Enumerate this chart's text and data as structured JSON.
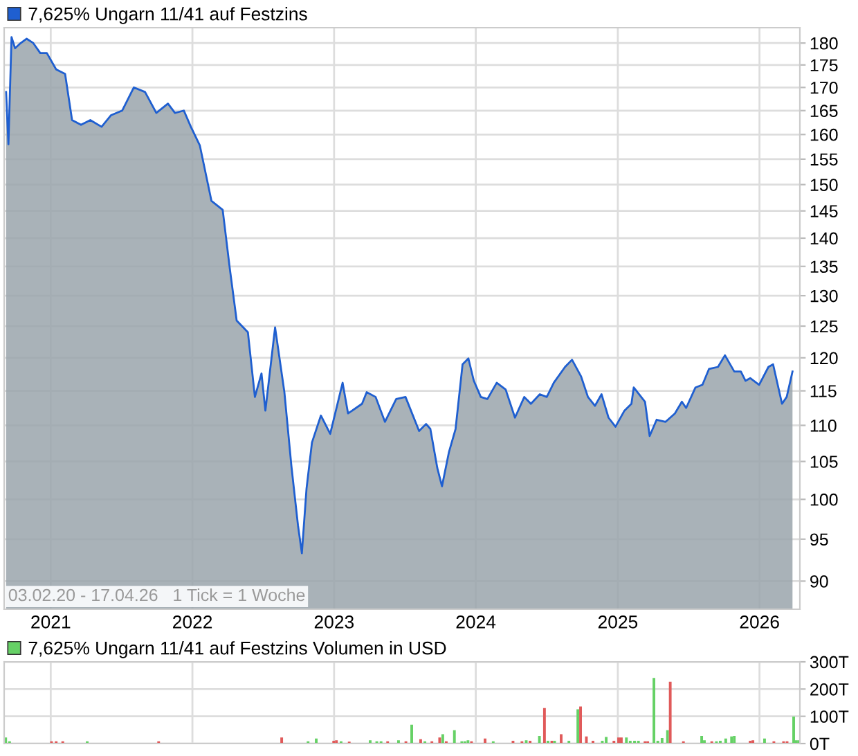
{
  "chart_data": [
    {
      "type": "area",
      "log": "y",
      "grid": true,
      "legend": "top left",
      "xlim": [
        "2020-09-03",
        "2026-04-15"
      ],
      "xticks": [
        {
          "value": "2021-01-01",
          "label": "2021"
        },
        {
          "value": "2022-01-01",
          "label": "2022"
        },
        {
          "value": "2023-01-01",
          "label": "2023"
        },
        {
          "value": "2024-01-01",
          "label": "2024"
        },
        {
          "value": "2025-01-01",
          "label": "2025"
        },
        {
          "value": "2026-01-01",
          "label": "2026"
        }
      ],
      "ylim": [
        86.8,
        183.6
      ],
      "yticks": [
        90,
        95,
        100,
        105,
        110,
        115,
        120,
        125,
        130,
        135,
        140,
        145,
        150,
        155,
        160,
        165,
        170,
        175,
        180
      ],
      "annotations": [
        "03.02.20 - 17.04.26   1 Tick = 1 Woche"
      ],
      "series": [
        {
          "name": "7,625% Ungarn 11/41 auf Festzins",
          "color": "#1f5fd0",
          "x": [
            "2020-09-08",
            "2020-09-14",
            "2020-09-22",
            "2020-10-01",
            "2020-10-13",
            "2020-10-31",
            "2020-11-17",
            "2020-12-05",
            "2020-12-22",
            "2021-01-15",
            "2021-02-07",
            "2021-02-25",
            "2021-03-20",
            "2021-04-13",
            "2021-05-12",
            "2021-06-05",
            "2021-07-04",
            "2021-08-03",
            "2021-09-01",
            "2021-09-30",
            "2021-10-30",
            "2021-11-17",
            "2021-12-10",
            "2021-12-28",
            "2022-01-20",
            "2022-02-19",
            "2022-03-20",
            "2022-04-07",
            "2022-04-25",
            "2022-05-24",
            "2022-06-11",
            "2022-06-28",
            "2022-07-08",
            "2022-08-02",
            "2022-08-26",
            "2022-09-13",
            "2022-09-30",
            "2022-10-10",
            "2022-10-22",
            "2022-11-05",
            "2022-11-28",
            "2022-12-22",
            "2023-01-23",
            "2023-02-06",
            "2023-03-14",
            "2023-03-26",
            "2023-04-18",
            "2023-05-12",
            "2023-06-10",
            "2023-07-04",
            "2023-08-08",
            "2023-08-26",
            "2023-09-06",
            "2023-09-24",
            "2023-10-06",
            "2023-10-24",
            "2023-11-10",
            "2023-11-28",
            "2023-12-13",
            "2023-12-27",
            "2024-01-14",
            "2024-01-31",
            "2024-02-24",
            "2024-03-18",
            "2024-04-11",
            "2024-05-05",
            "2024-05-22",
            "2024-06-14",
            "2024-07-02",
            "2024-07-20",
            "2024-08-18",
            "2024-09-05",
            "2024-09-28",
            "2024-10-16",
            "2024-11-03",
            "2024-11-20",
            "2024-12-08",
            "2024-12-26",
            "2025-01-18",
            "2025-02-05",
            "2025-02-11",
            "2025-03-12",
            "2025-03-24",
            "2025-04-11",
            "2025-05-04",
            "2025-05-28",
            "2025-06-15",
            "2025-06-26",
            "2025-07-20",
            "2025-08-07",
            "2025-08-24",
            "2025-09-16",
            "2025-10-04",
            "2025-10-28",
            "2025-11-14",
            "2025-11-26",
            "2025-12-08",
            "2025-12-31",
            "2026-01-24",
            "2026-02-05",
            "2026-02-28",
            "2026-03-12",
            "2026-03-27"
          ],
          "values": [
            169,
            158,
            181.4,
            178.8,
            179.8,
            181,
            180,
            177.7,
            177.7,
            174,
            173,
            163,
            162,
            163,
            161.6,
            164,
            165,
            170,
            169,
            164.5,
            166.5,
            164.5,
            165,
            161.6,
            157.8,
            146.9,
            145.2,
            134.8,
            125.9,
            124,
            114.1,
            117.6,
            112.1,
            124.8,
            114.8,
            104.4,
            96.7,
            93.3,
            101.4,
            107.6,
            111.4,
            108.8,
            116.2,
            111.7,
            113.1,
            114.8,
            114.1,
            110.5,
            113.8,
            114.1,
            109.2,
            110.2,
            109.5,
            104.1,
            101.7,
            106.3,
            109.5,
            119,
            119.9,
            116.5,
            114.1,
            113.8,
            116.2,
            115.2,
            111.1,
            114.1,
            113.1,
            114.5,
            114.1,
            116.2,
            118.6,
            119.7,
            117.2,
            114.1,
            112.8,
            114.5,
            111.1,
            109.8,
            112.1,
            113.1,
            115.5,
            113.4,
            108.5,
            110.8,
            110.5,
            111.7,
            113.4,
            112.5,
            115.5,
            115.9,
            118.3,
            118.6,
            120.4,
            117.9,
            117.9,
            116.5,
            116.9,
            115.9,
            118.6,
            119,
            113.1,
            114.1,
            117.9
          ]
        }
      ]
    },
    {
      "type": "bar",
      "grid": true,
      "legend": "top left",
      "tick_labels": "y",
      "xlim": [
        "2020-09-03",
        "2026-04-15"
      ],
      "xticks": [
        {
          "value": "2021-01-01",
          "label": null
        },
        {
          "value": "2022-01-01",
          "label": null
        },
        {
          "value": "2023-01-01",
          "label": null
        },
        {
          "value": "2024-01-01",
          "label": null
        },
        {
          "value": "2025-01-01",
          "label": null
        },
        {
          "value": "2026-01-01",
          "label": null
        }
      ],
      "ylim": [
        0,
        300
      ],
      "yticks": [
        {
          "value": 0,
          "label": "0T"
        },
        {
          "value": 100,
          "label": "100T"
        },
        {
          "value": 200,
          "label": "200T"
        },
        {
          "value": 300,
          "label": "300T"
        }
      ],
      "series": [
        {
          "name": "7,625% Ungarn 11/41 auf Festzins Volumen in USD",
          "color": "#66d166",
          "x": [
            "2020-09-07",
            "2020-09-17",
            "2021-01-03",
            "2021-01-15",
            "2021-02-01",
            "2021-04-05",
            "2021-10-06",
            "2022-08-19",
            "2022-10-26",
            "2022-11-16",
            "2022-12-31",
            "2023-01-07",
            "2023-01-19",
            "2023-02-09",
            "2023-04-04",
            "2023-04-21",
            "2023-05-02",
            "2023-05-19",
            "2023-06-16",
            "2023-07-05",
            "2023-07-20",
            "2023-08-12",
            "2023-08-23",
            "2023-09-10",
            "2023-09-30",
            "2023-10-08",
            "2023-10-17",
            "2023-11-07",
            "2023-11-26",
            "2023-12-04",
            "2023-12-12",
            "2023-12-21",
            "2024-01-25",
            "2024-02-15",
            "2024-04-06",
            "2024-04-29",
            "2024-05-10",
            "2024-05-20",
            "2024-06-13",
            "2024-06-26",
            "2024-07-05",
            "2024-07-15",
            "2024-07-22",
            "2024-08-08",
            "2024-08-28",
            "2024-09-20",
            "2024-09-27",
            "2024-10-12",
            "2024-10-29",
            "2024-11-22",
            "2024-12-02",
            "2024-12-22",
            "2025-01-03",
            "2025-01-10",
            "2025-01-23",
            "2025-02-02",
            "2025-02-13",
            "2025-02-23",
            "2025-03-12",
            "2025-03-19",
            "2025-04-04",
            "2025-04-14",
            "2025-04-25",
            "2025-05-09",
            "2025-05-16",
            "2025-06-19",
            "2025-08-05",
            "2025-08-12",
            "2025-08-31",
            "2025-09-12",
            "2025-09-22",
            "2025-10-06",
            "2025-10-21",
            "2025-10-28",
            "2025-12-08",
            "2025-12-15",
            "2026-01-14",
            "2026-02-07",
            "2026-03-04",
            "2026-03-13",
            "2026-03-30",
            "2026-04-06",
            "2026-04-13"
          ],
          "values": [
            20,
            6,
            6,
            6,
            6,
            6,
            6,
            20,
            6,
            16,
            8,
            10,
            6,
            5,
            10,
            6,
            6,
            6,
            10,
            6,
            67,
            14,
            6,
            6,
            20,
            32,
            6,
            47,
            6,
            6,
            10,
            6,
            16,
            6,
            8,
            6,
            10,
            8,
            26,
            128,
            8,
            8,
            8,
            32,
            8,
            124,
            134,
            24,
            8,
            8,
            22,
            8,
            20,
            20,
            20,
            8,
            8,
            8,
            6,
            6,
            239,
            8,
            18,
            47,
            225,
            6,
            26,
            10,
            6,
            6,
            8,
            16,
            24,
            26,
            8,
            10,
            16,
            6,
            6,
            6,
            97,
            10,
            10
          ],
          "colors": [
            "#66d166",
            "#66d166",
            "#e05a5a",
            "#e05a5a",
            "#e05a5a",
            "#66d166",
            "#e05a5a",
            "#e05a5a",
            "#66d166",
            "#66d166",
            "#e05a5a",
            "#e05a5a",
            "#66d166",
            "#e05a5a",
            "#66d166",
            "#66d166",
            "#66d166",
            "#e05a5a",
            "#66d166",
            "#e05a5a",
            "#66d166",
            "#e05a5a",
            "#66d166",
            "#e05a5a",
            "#e05a5a",
            "#66d166",
            "#e05a5a",
            "#66d166",
            "#66d166",
            "#66d166",
            "#66d166",
            "#e05a5a",
            "#e05a5a",
            "#66d166",
            "#e05a5a",
            "#e05a5a",
            "#66d166",
            "#e05a5a",
            "#66d166",
            "#e05a5a",
            "#66d166",
            "#e05a5a",
            "#66d166",
            "#e05a5a",
            "#66d166",
            "#66d166",
            "#e05a5a",
            "#e05a5a",
            "#e05a5a",
            "#66d166",
            "#66d166",
            "#e05a5a",
            "#e05a5a",
            "#e05a5a",
            "#66d166",
            "#66d166",
            "#66d166",
            "#66d166",
            "#e05a5a",
            "#e05a5a",
            "#66d166",
            "#66d166",
            "#66d166",
            "#66d166",
            "#e05a5a",
            "#e05a5a",
            "#66d166",
            "#66d166",
            "#e05a5a",
            "#66d166",
            "#66d166",
            "#66d166",
            "#66d166",
            "#66d166",
            "#e05a5a",
            "#e05a5a",
            "#66d166",
            "#e05a5a",
            "#e05a5a",
            "#e05a5a",
            "#66d166",
            "#66d166",
            "#66d166"
          ]
        }
      ]
    }
  ]
}
